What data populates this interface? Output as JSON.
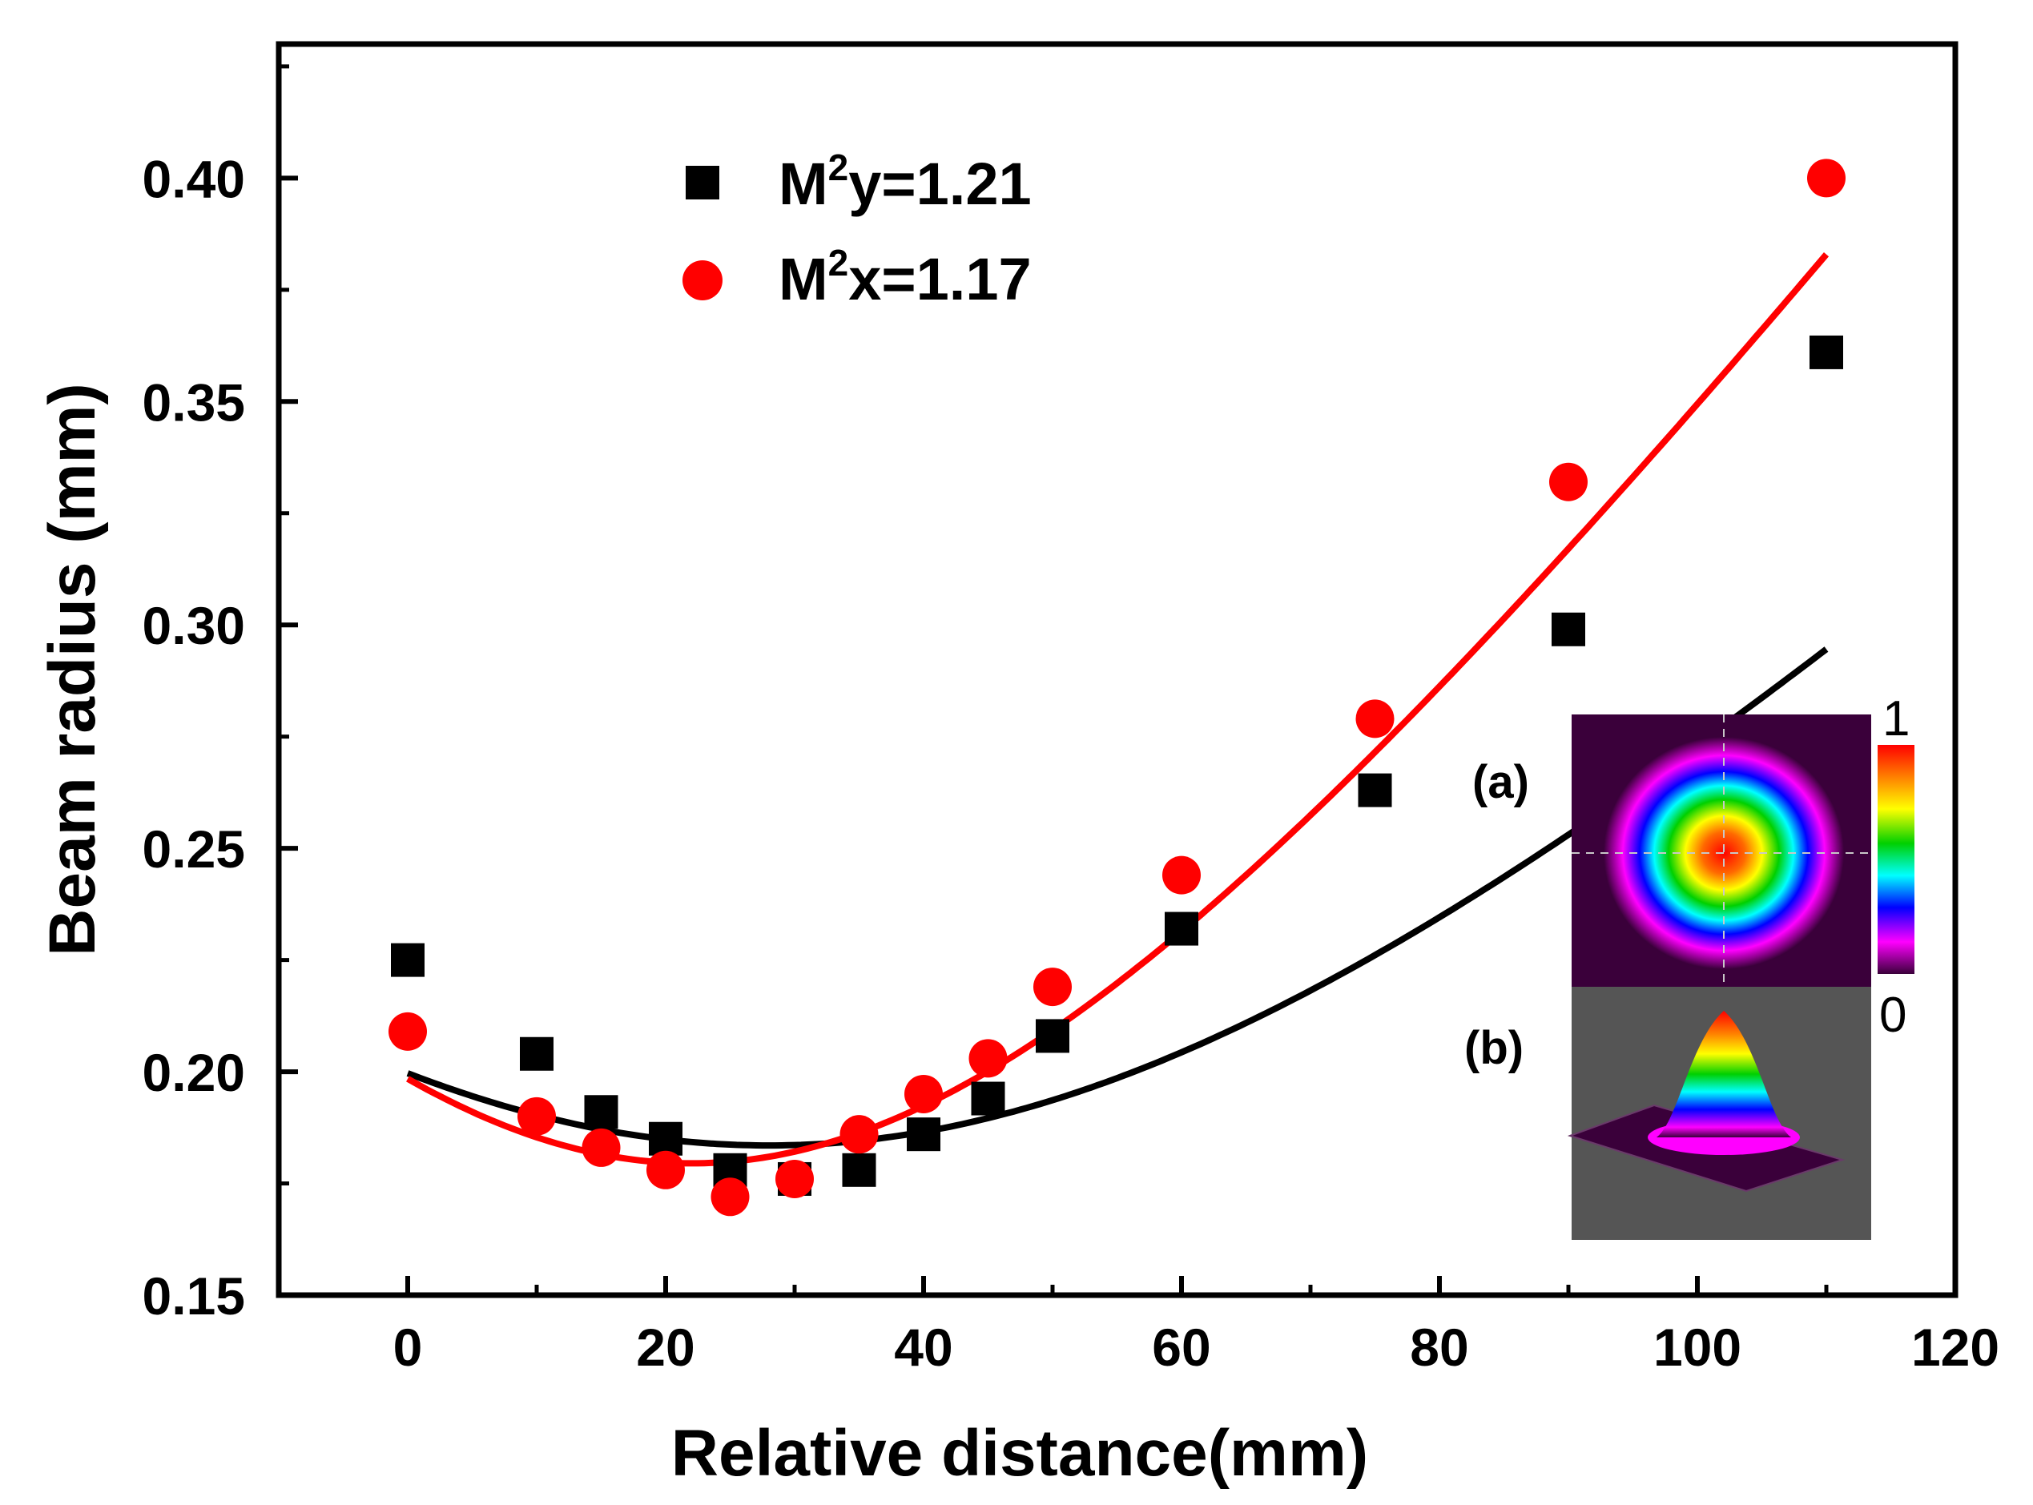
{
  "chart_data": {
    "type": "scatter",
    "xlabel": "Relative distance(mm)",
    "ylabel": "Beam radius (mm)",
    "xlim": [
      -10,
      120
    ],
    "ylim": [
      0.15,
      0.43
    ],
    "xticks": [
      0,
      20,
      40,
      60,
      80,
      100,
      120
    ],
    "xtick_labels": [
      "0",
      "20",
      "40",
      "60",
      "80",
      "100",
      "120"
    ],
    "yticks": [
      0.15,
      0.2,
      0.25,
      0.3,
      0.35,
      0.4
    ],
    "ytick_labels": [
      "0.15",
      "0.20",
      "0.25",
      "0.30",
      "0.35",
      "0.40"
    ],
    "legend_position": "top-left",
    "series": [
      {
        "name": "M²y=1.21",
        "legend_parts": [
          "M",
          "2",
          "y=1.21"
        ],
        "marker": "square",
        "color": "#000000",
        "x": [
          0,
          10,
          15,
          20,
          25,
          30,
          35,
          40,
          45,
          50,
          60,
          75,
          90,
          110
        ],
        "y": [
          0.225,
          0.204,
          0.191,
          0.185,
          0.178,
          0.176,
          0.178,
          0.186,
          0.194,
          0.208,
          0.232,
          0.263,
          0.299,
          0.361
        ],
        "fit": {
          "w0": 0.1835,
          "z0": 28,
          "zr": 65.3,
          "x_range": [
            0,
            110
          ]
        }
      },
      {
        "name": "M²x=1.17",
        "legend_parts": [
          "M",
          "2",
          "x=1.17"
        ],
        "marker": "circle",
        "color": "#ff0000",
        "x": [
          0,
          10,
          15,
          20,
          25,
          30,
          35,
          40,
          45,
          50,
          60,
          75,
          90,
          110
        ],
        "y": [
          0.209,
          0.19,
          0.183,
          0.178,
          0.172,
          0.176,
          0.186,
          0.195,
          0.203,
          0.219,
          0.244,
          0.279,
          0.332,
          0.4
        ],
        "fit": {
          "w0": 0.1795,
          "z0": 22,
          "zr": 46.7,
          "x_range": [
            0,
            110
          ]
        }
      }
    ],
    "inset": {
      "panel_a_label": "(a)",
      "panel_b_label": "(b)",
      "colorbar_max": "1",
      "colorbar_min": "0",
      "colorbar_colors": [
        "#ff0000",
        "#ff8000",
        "#ffff00",
        "#00d000",
        "#00ffff",
        "#0000ff",
        "#ff00ff",
        "#3a003a"
      ]
    }
  }
}
